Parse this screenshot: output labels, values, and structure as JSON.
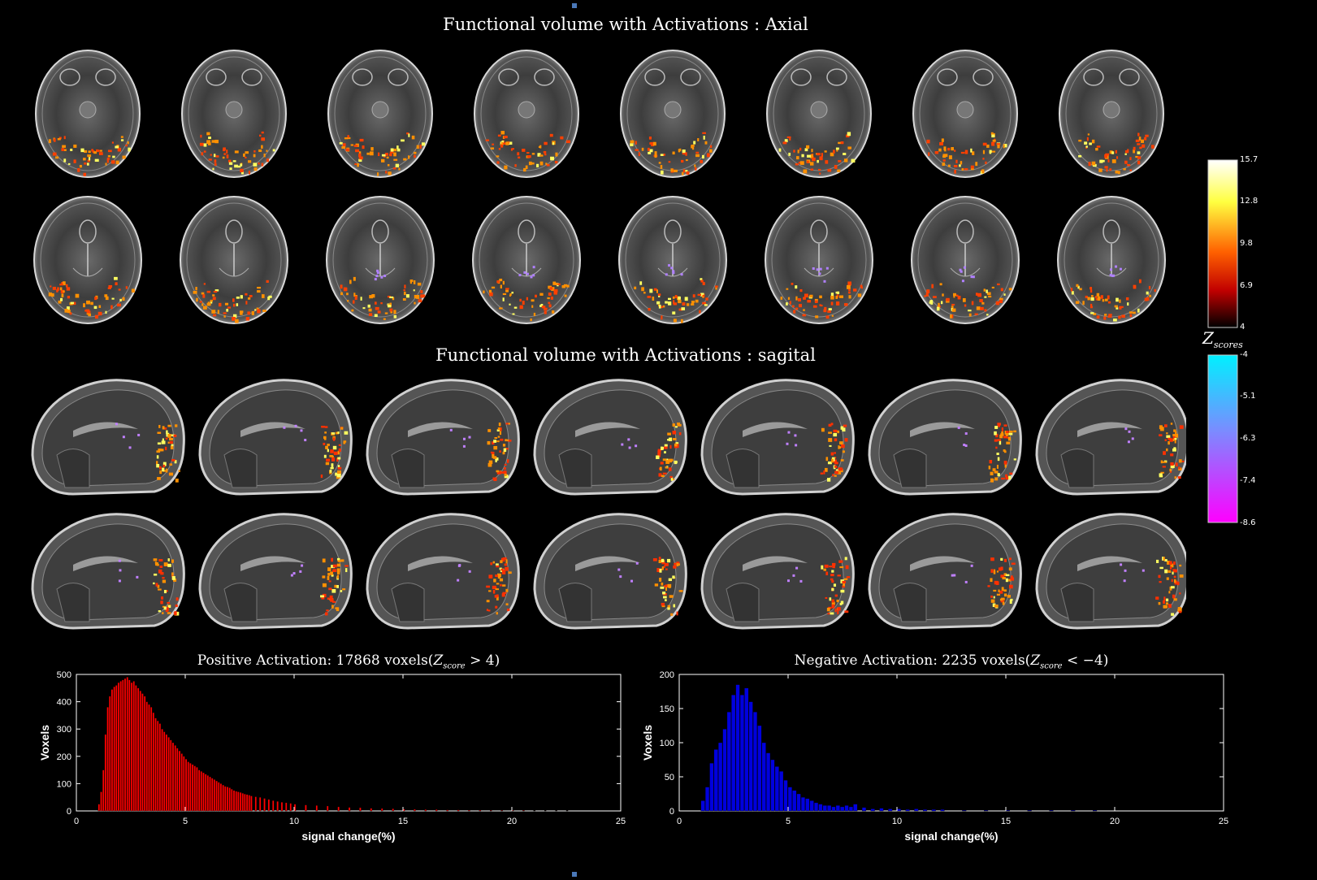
{
  "titles": {
    "axial": "Functional volume with Activations : Axial",
    "sagital": "Functional volume with Activations : sagital"
  },
  "colorbars": {
    "positive": {
      "ticks": [
        "15.7",
        "12.8",
        "9.8",
        "6.9",
        "4"
      ],
      "colors": [
        "#ffffff",
        "#ffff40",
        "#ff8000",
        "#ff0000",
        "#000000"
      ]
    },
    "negative": {
      "ticks": [
        "-4",
        "-5.1",
        "-6.3",
        "-7.4",
        "-8.6"
      ],
      "colors": [
        "#00ffff",
        "#8080ff",
        "#ff00ff"
      ]
    },
    "label_main": "Z",
    "label_sub": "scores"
  },
  "panels": {
    "axial_rows": 2,
    "axial_cols": 8,
    "sagittal_rows": 2,
    "sagittal_cols": 7
  },
  "chart_data": [
    {
      "type": "bar",
      "title_prefix": "Positive Activation: 17868 voxels(",
      "title_math": "Z",
      "title_sub": "score",
      "title_suffix": " > 4)",
      "xlabel": "signal change(%)",
      "ylabel": "Voxels",
      "xlim": [
        0,
        25
      ],
      "ylim": [
        0,
        500
      ],
      "xticks": [
        0,
        5,
        10,
        15,
        20,
        25
      ],
      "yticks": [
        0,
        100,
        200,
        300,
        400,
        500
      ],
      "bin_width": 0.1,
      "color": "#ff0000",
      "x": [
        1.0,
        1.1,
        1.2,
        1.3,
        1.4,
        1.5,
        1.6,
        1.7,
        1.8,
        1.9,
        2.0,
        2.1,
        2.2,
        2.3,
        2.4,
        2.5,
        2.6,
        2.7,
        2.8,
        2.9,
        3.0,
        3.1,
        3.2,
        3.3,
        3.4,
        3.5,
        3.6,
        3.7,
        3.8,
        3.9,
        4.0,
        4.1,
        4.2,
        4.3,
        4.4,
        4.5,
        4.6,
        4.7,
        4.8,
        4.9,
        5.0,
        5.1,
        5.2,
        5.3,
        5.4,
        5.5,
        5.6,
        5.7,
        5.8,
        5.9,
        6.0,
        6.1,
        6.2,
        6.3,
        6.4,
        6.5,
        6.6,
        6.7,
        6.8,
        6.9,
        7.0,
        7.1,
        7.2,
        7.3,
        7.4,
        7.5,
        7.6,
        7.7,
        7.8,
        7.9,
        8.0,
        8.2,
        8.4,
        8.6,
        8.8,
        9.0,
        9.2,
        9.4,
        9.6,
        9.8,
        10.0,
        10.5,
        11.0,
        11.5,
        12.0,
        12.5,
        13.0,
        13.5,
        14.0,
        14.5,
        15.0,
        15.5,
        16.0,
        16.5,
        17.0,
        17.5,
        18.0,
        18.5,
        19.0,
        19.5,
        20.0,
        20.5,
        21.0,
        21.5,
        22.0,
        22.5
      ],
      "values": [
        25,
        70,
        150,
        280,
        380,
        420,
        445,
        455,
        460,
        470,
        475,
        480,
        485,
        490,
        480,
        470,
        475,
        460,
        450,
        440,
        430,
        420,
        400,
        390,
        380,
        360,
        340,
        330,
        320,
        300,
        290,
        280,
        270,
        260,
        250,
        240,
        230,
        220,
        210,
        200,
        190,
        180,
        175,
        170,
        165,
        160,
        150,
        145,
        140,
        135,
        130,
        125,
        120,
        115,
        110,
        105,
        100,
        95,
        90,
        88,
        85,
        80,
        75,
        72,
        70,
        68,
        65,
        62,
        60,
        58,
        55,
        52,
        50,
        46,
        42,
        38,
        35,
        32,
        30,
        28,
        25,
        22,
        20,
        18,
        15,
        13,
        12,
        10,
        9,
        8,
        7,
        6,
        5,
        5,
        4,
        4,
        3,
        3,
        2,
        2,
        2,
        2,
        1,
        1,
        1,
        1
      ]
    },
    {
      "type": "bar",
      "title_prefix": "Negative Activation: 2235 voxels(",
      "title_math": "Z",
      "title_sub": "score",
      "title_suffix": " < −4)",
      "xlabel": "signal change(%)",
      "ylabel": "Voxels",
      "xlim": [
        0,
        25
      ],
      "ylim": [
        0,
        200
      ],
      "xticks": [
        0,
        5,
        10,
        15,
        20,
        25
      ],
      "yticks": [
        0,
        50,
        100,
        150,
        200
      ],
      "bin_width": 0.2,
      "color": "#0000dd",
      "x": [
        1.0,
        1.2,
        1.4,
        1.6,
        1.8,
        2.0,
        2.2,
        2.4,
        2.6,
        2.8,
        3.0,
        3.2,
        3.4,
        3.6,
        3.8,
        4.0,
        4.2,
        4.4,
        4.6,
        4.8,
        5.0,
        5.2,
        5.4,
        5.6,
        5.8,
        6.0,
        6.2,
        6.4,
        6.6,
        6.8,
        7.0,
        7.2,
        7.4,
        7.6,
        7.8,
        8.0,
        8.4,
        8.8,
        9.2,
        9.6,
        10.0,
        10.4,
        10.8,
        11.2,
        11.6,
        12.0,
        13.0,
        14.0,
        15.0,
        16.0,
        17.0,
        18.0,
        19.0
      ],
      "values": [
        15,
        35,
        70,
        90,
        100,
        120,
        145,
        170,
        185,
        170,
        180,
        160,
        145,
        125,
        100,
        85,
        75,
        65,
        58,
        45,
        35,
        30,
        25,
        20,
        18,
        15,
        12,
        10,
        8,
        8,
        6,
        8,
        6,
        8,
        6,
        10,
        5,
        3,
        4,
        3,
        3,
        2,
        3,
        2,
        2,
        2,
        1,
        1,
        1,
        1,
        1,
        1,
        1
      ]
    }
  ]
}
